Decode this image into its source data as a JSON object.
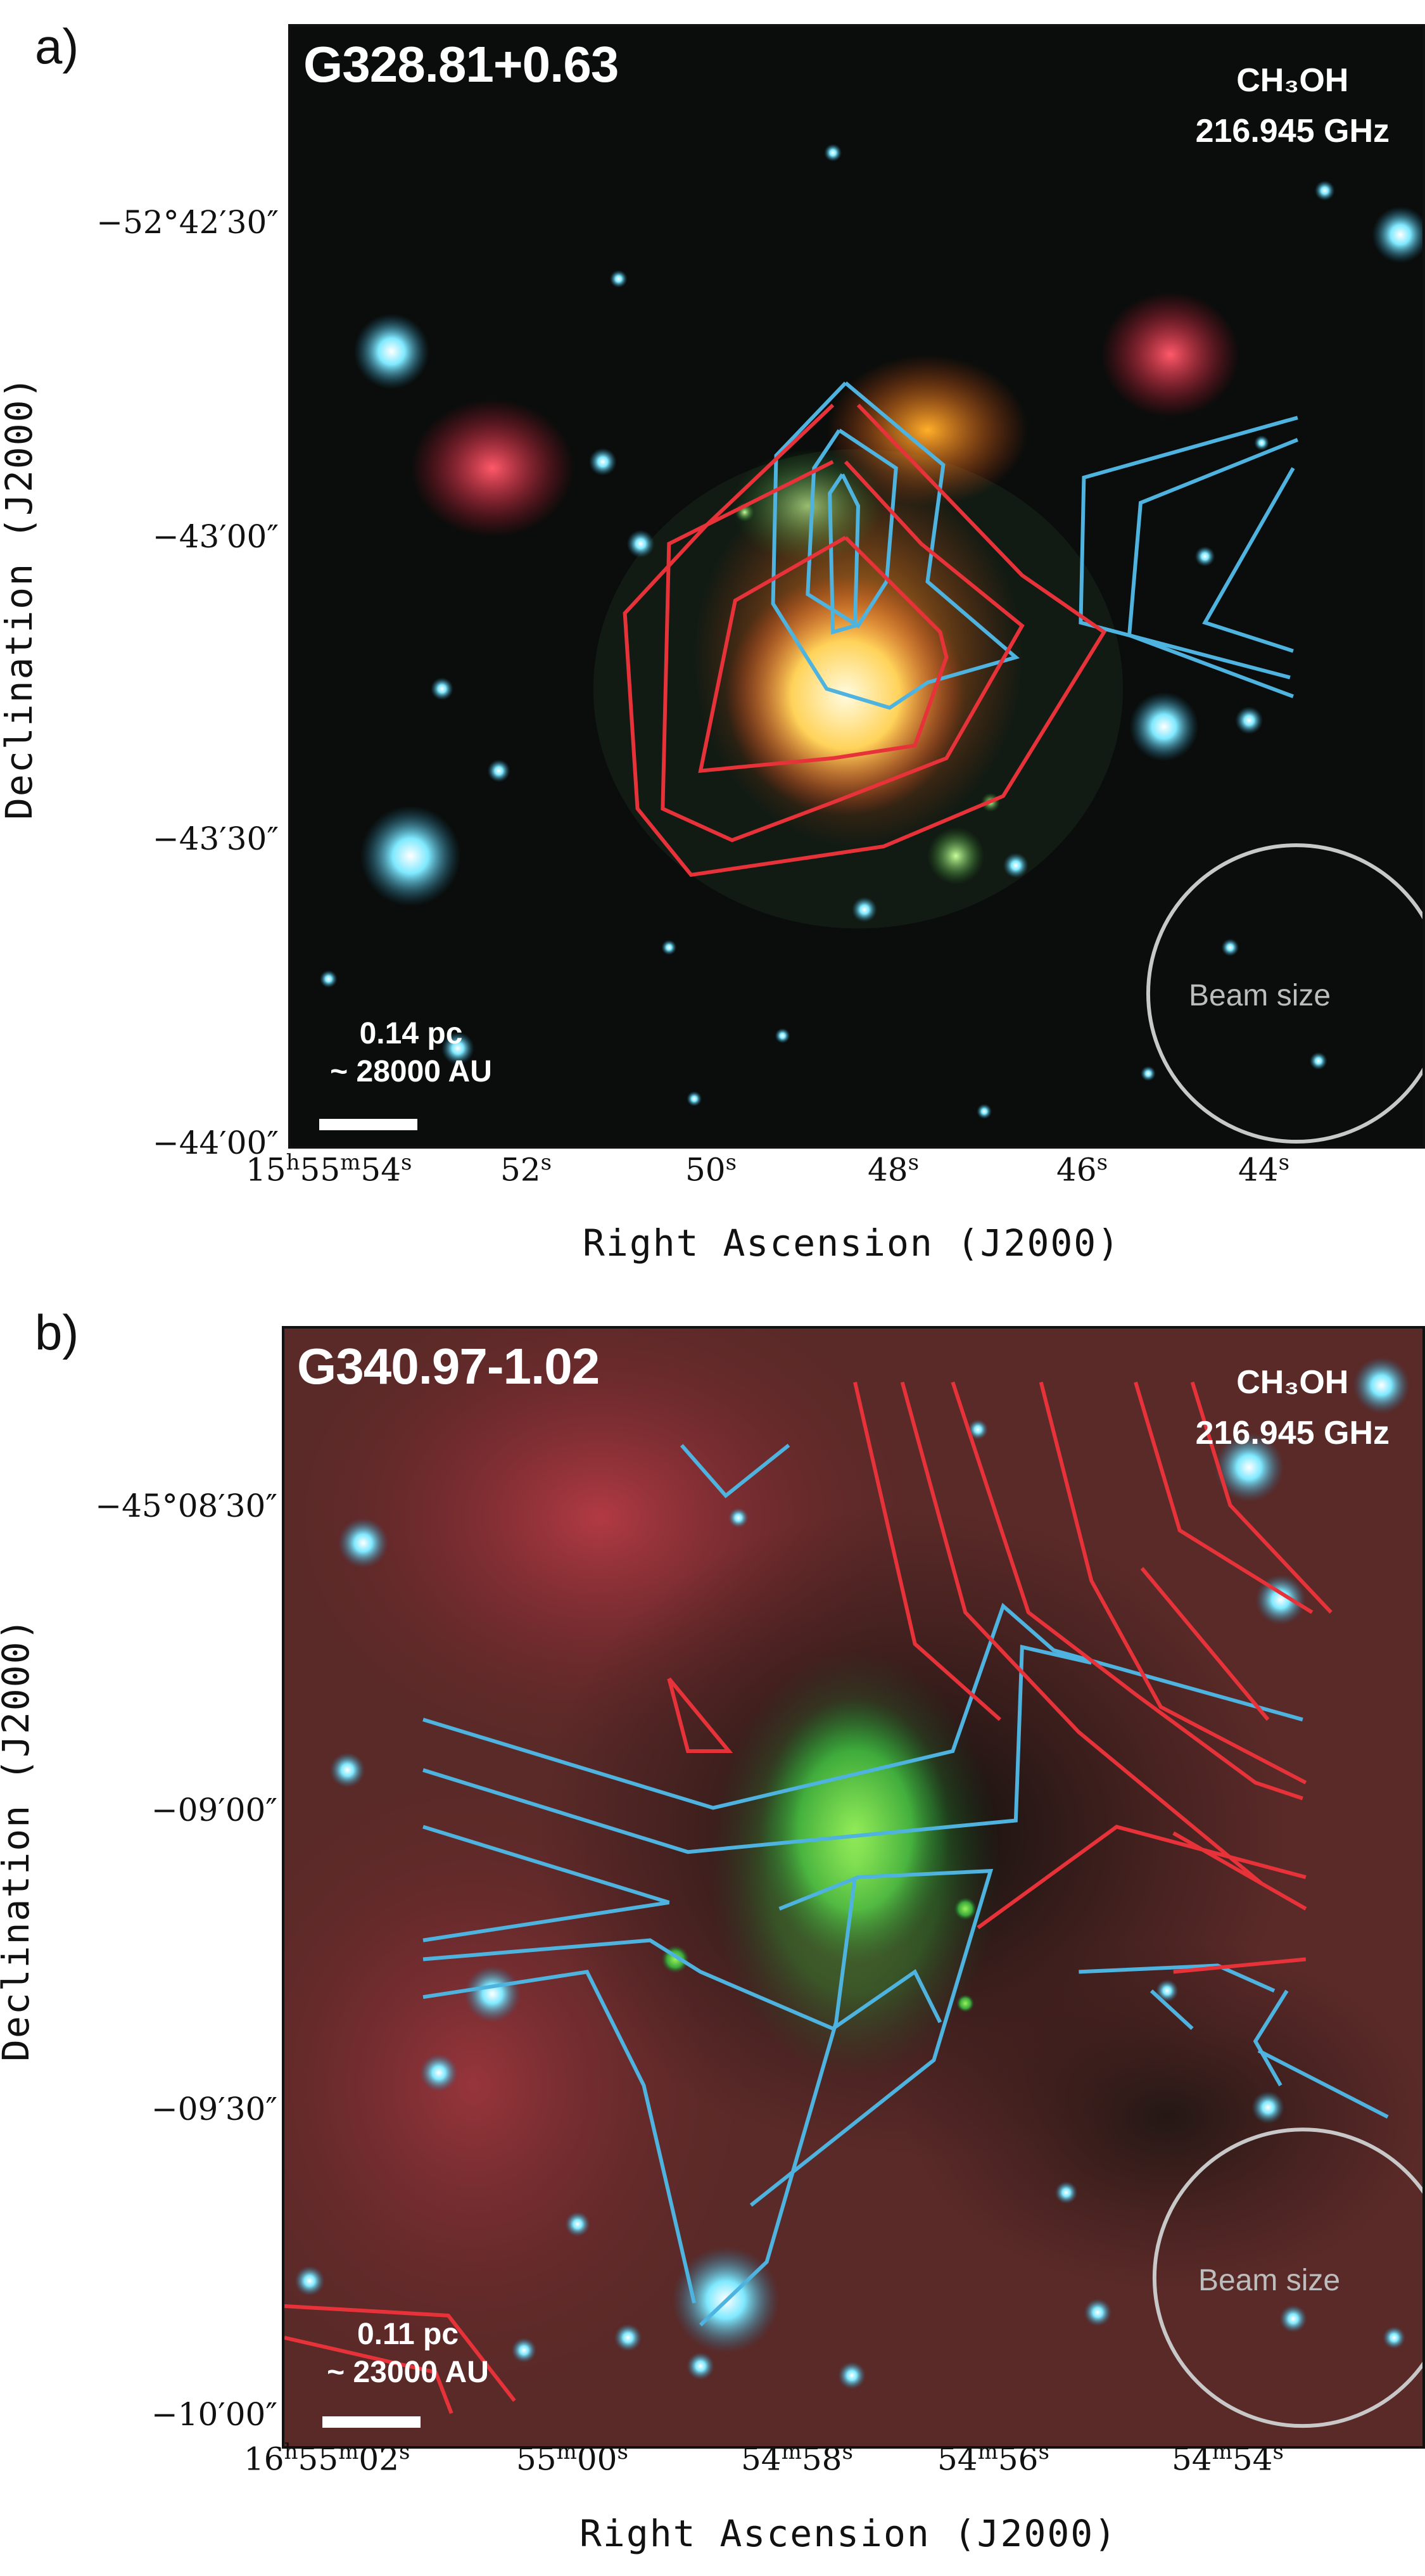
{
  "panel_a": {
    "letter": "a)",
    "source": "G328.81+0.63",
    "molecule": "CH₃OH",
    "frequency": "216.945 GHz",
    "beam_label": "Beam size",
    "scale_pc": "0.14 pc",
    "scale_au": "~ 28000 AU",
    "dec_ticks": [
      "−52°42′30″",
      "−43′00″",
      "−43′30″",
      "−44′00″"
    ],
    "ra_ticks": [
      {
        "h": "15",
        "hu": "h",
        "m": "55",
        "mu": "m",
        "s": "54",
        "su": "s"
      },
      {
        "s": "52",
        "su": "s"
      },
      {
        "s": "50",
        "su": "s"
      },
      {
        "s": "48",
        "su": "s"
      },
      {
        "s": "46",
        "su": "s"
      },
      {
        "s": "44",
        "su": "s"
      }
    ],
    "xlabel": "Right Ascension (J2000)",
    "ylabel": "Declination (J2000)"
  },
  "panel_b": {
    "letter": "b)",
    "source": "G340.97-1.02",
    "molecule": "CH₃OH",
    "frequency": "216.945 GHz",
    "beam_label": "Beam size",
    "scale_pc": "0.11 pc",
    "scale_au": "~ 23000 AU",
    "dec_ticks": [
      "−45°08′30″",
      "−09′00″",
      "−09′30″",
      "−10′00″"
    ],
    "ra_ticks": [
      {
        "h": "16",
        "hu": "h",
        "m": "55",
        "mu": "m",
        "s": "02",
        "su": "s"
      },
      {
        "m": "55",
        "mu": "m",
        "s": "00",
        "su": "s"
      },
      {
        "m": "54",
        "mu": "m",
        "s": "58",
        "su": "s"
      },
      {
        "m": "54",
        "mu": "m",
        "s": "56",
        "su": "s"
      },
      {
        "m": "54",
        "mu": "m",
        "s": "54",
        "su": "s"
      }
    ],
    "xlabel": "Right Ascension (J2000)",
    "ylabel": "Declination (J2000)"
  },
  "colors": {
    "contour_red": "#e8323a",
    "contour_blue": "#4fb3e0",
    "beam_circle": "#c8c8c8"
  }
}
